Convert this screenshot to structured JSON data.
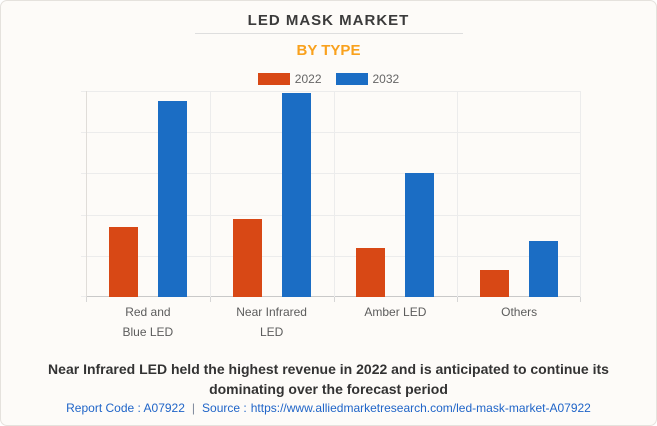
{
  "header": {
    "title": "LED MASK MARKET",
    "subtitle": "BY TYPE"
  },
  "caption": {
    "line1": "Near Infrared LED held the highest revenue in 2022 and is anticipated to continue its",
    "line2": "dominating over the forecast period"
  },
  "footer": {
    "report_code": "Report Code : A07922",
    "separator": "|",
    "source_label": "Source :",
    "source_url": "https://www.alliedmarketresearch.com/led-mask-market-A07922"
  },
  "colors": {
    "background": "#fdfbf8",
    "card_border": "#e5e2dd",
    "title_text": "#3b3b3b",
    "subtitle_orange": "#f9a11d",
    "series_2022_orange": "#d84815",
    "series_2032_blue": "#1b6dc4",
    "gridline": "#ececec",
    "axis_line": "#c9c9c9",
    "tick_label": "#5c5c5c",
    "legend_text": "#666666",
    "caption_text": "#333333",
    "link_blue": "#2065c8"
  },
  "chart_data": {
    "type": "bar",
    "title": "LED MASK MARKET",
    "subtitle": "BY TYPE",
    "categories": [
      "Red and Blue LED",
      "Near Infrared LED",
      "Amber LED",
      "Others"
    ],
    "tick_labels": [
      "Red and\nBlue LED",
      "Near Infrared\nLED",
      "Amber LED",
      "Others"
    ],
    "series": [
      {
        "name": "2022",
        "color": "#d84815",
        "values": [
          34,
          38,
          24,
          13
        ]
      },
      {
        "name": "2032",
        "color": "#1b6dc4",
        "values": [
          95,
          99,
          60,
          27
        ]
      }
    ],
    "xlabel": "",
    "ylabel": "",
    "ylim": [
      0,
      100
    ],
    "y_axis_labels_visible": false,
    "grid": true,
    "gridline_intervals": 5,
    "legend_position": "top",
    "units": "relative revenue (y-axis unlabeled in source image)"
  }
}
